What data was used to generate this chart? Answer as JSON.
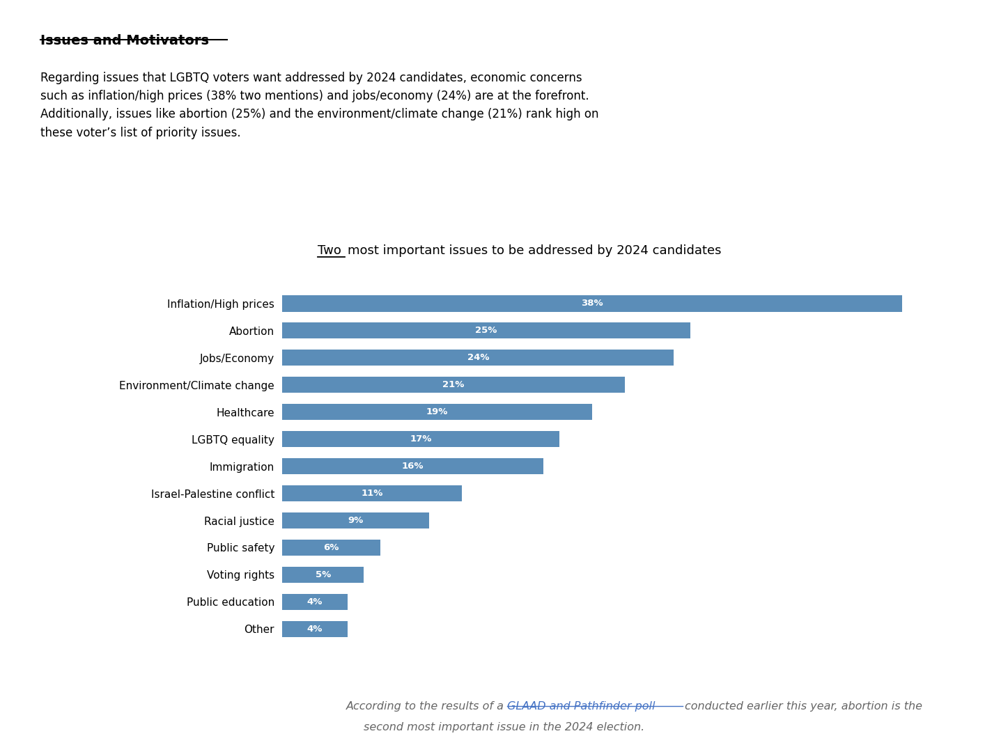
{
  "categories": [
    "Inflation/High prices",
    "Abortion",
    "Jobs/Economy",
    "Environment/Climate change",
    "Healthcare",
    "LGBTQ equality",
    "Immigration",
    "Israel-Palestine conflict",
    "Racial justice",
    "Public safety",
    "Voting rights",
    "Public education",
    "Other"
  ],
  "values": [
    38,
    25,
    24,
    21,
    19,
    17,
    16,
    11,
    9,
    6,
    5,
    4,
    4
  ],
  "bar_color": "#5B8DB8",
  "label_color": "#ffffff",
  "background_color": "#ffffff",
  "header_title": "Issues and Motivators",
  "header_body": "Regarding issues that LGBTQ voters want addressed by 2024 candidates, economic concerns\nsuch as inflation/high prices (38% two mentions) and jobs/economy (24%) are at the forefront.\nAdditionally, issues like abortion (25%) and the environment/climate change (21%) rank high on\nthese voter’s list of priority issues.",
  "xlim": [
    0,
    42
  ],
  "bar_height": 0.6,
  "figsize": [
    14.47,
    10.8
  ],
  "dpi": 100
}
